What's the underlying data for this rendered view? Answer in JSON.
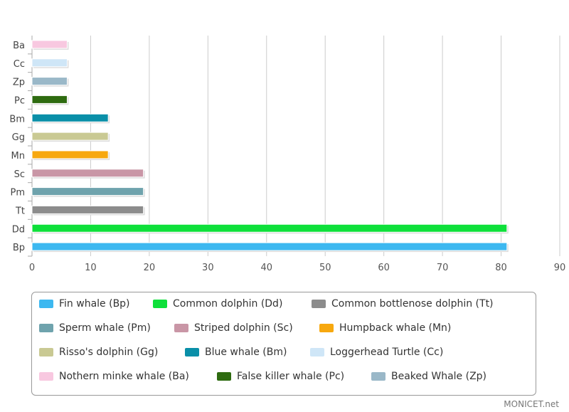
{
  "chart_data": {
    "type": "bar",
    "orientation": "horizontal",
    "categories": [
      "Ba",
      "Cc",
      "Zp",
      "Pc",
      "Bm",
      "Gg",
      "Mn",
      "Sc",
      "Pm",
      "Tt",
      "Dd",
      "Bp"
    ],
    "values": [
      6,
      6,
      6,
      6,
      13,
      13,
      13,
      19,
      19,
      19,
      81,
      81
    ],
    "colors": [
      "#f8c8e0",
      "#cfe6f7",
      "#9ab8c8",
      "#2e6b10",
      "#0a8fa8",
      "#c9c993",
      "#f7a80f",
      "#c996a6",
      "#6fa3ad",
      "#8c8c8c",
      "#0ee03a",
      "#3db8f0"
    ],
    "xlim": [
      0,
      90
    ],
    "xticks": [
      "0",
      "10",
      "20",
      "30",
      "40",
      "50",
      "60",
      "70",
      "80",
      "90"
    ],
    "grid": true,
    "legend_position": "bottom",
    "legend": [
      {
        "label": "Fin whale (Bp)",
        "color": "#3db8f0"
      },
      {
        "label": "Common dolphin (Dd)",
        "color": "#0ee03a"
      },
      {
        "label": "Common bottlenose dolphin (Tt)",
        "color": "#8c8c8c"
      },
      {
        "label": "Sperm whale (Pm)",
        "color": "#6fa3ad"
      },
      {
        "label": "Striped dolphin (Sc)",
        "color": "#c996a6"
      },
      {
        "label": "Humpback whale (Mn)",
        "color": "#f7a80f"
      },
      {
        "label": "Risso's dolphin (Gg)",
        "color": "#c9c993"
      },
      {
        "label": "Blue whale (Bm)",
        "color": "#0a8fa8"
      },
      {
        "label": "Loggerhead Turtle (Cc)",
        "color": "#cfe6f7"
      },
      {
        "label": "Nothern minke whale (Ba)",
        "color": "#f8c8e0"
      },
      {
        "label": "False killer whale (Pc)",
        "color": "#2e6b10"
      },
      {
        "label": "Beaked Whale (Zp)",
        "color": "#9ab8c8"
      }
    ]
  },
  "credit": "MONICET.net"
}
